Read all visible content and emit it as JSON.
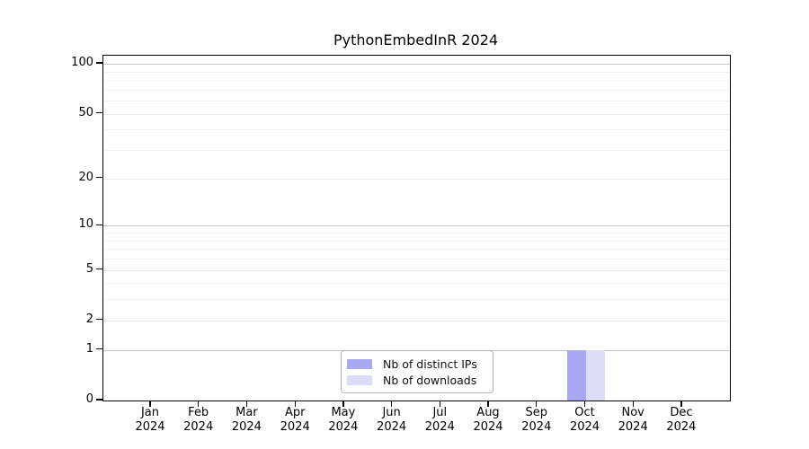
{
  "page": {
    "title": "PythonEmbedInR 2024"
  },
  "chart_data": {
    "type": "bar",
    "title": "PythonEmbedInR 2024",
    "xlabel": "",
    "ylabel": "",
    "categories": [
      "Jan 2024",
      "Feb 2024",
      "Mar 2024",
      "Apr 2024",
      "May 2024",
      "Jun 2024",
      "Jul 2024",
      "Aug 2024",
      "Sep 2024",
      "Oct 2024",
      "Nov 2024",
      "Dec 2024"
    ],
    "series": [
      {
        "name": "Nb of distinct IPs",
        "color": "#a8a8f2",
        "values": [
          0,
          0,
          0,
          0,
          0,
          0,
          0,
          0,
          0,
          1,
          0,
          0
        ]
      },
      {
        "name": "Nb of downloads",
        "color": "#dcdcf7",
        "values": [
          0,
          0,
          0,
          0,
          0,
          0,
          0,
          0,
          0,
          1,
          0,
          0
        ]
      }
    ],
    "yscale": "log1p",
    "ylim": [
      0,
      112
    ],
    "yticks": [
      0,
      1,
      2,
      5,
      10,
      20,
      50,
      100
    ],
    "yticks_minor": [
      3,
      4,
      6,
      7,
      8,
      9,
      30,
      40,
      60,
      70,
      80,
      90
    ],
    "grid": "horizontal",
    "gridline_colors": {
      "major": "#c6c6c6",
      "labeled": "#e6e6e6",
      "minor": "#f1f1f1"
    },
    "legend": {
      "position": "bottom-center",
      "entries": [
        "Nb of distinct IPs",
        "Nb of downloads"
      ]
    }
  }
}
